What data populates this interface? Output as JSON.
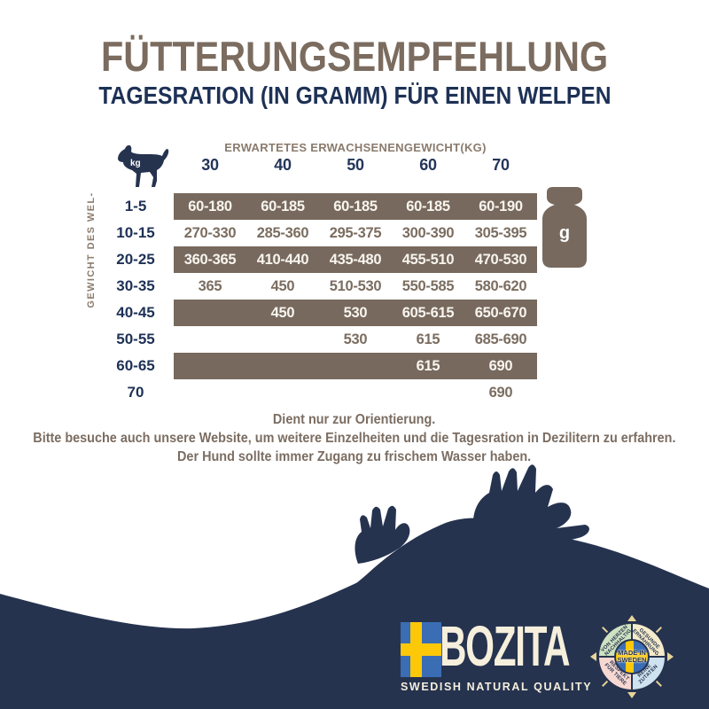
{
  "palette": {
    "navy": "#26334f",
    "navy_text": "#1e3156",
    "taupe_band": "#77695e",
    "taupe_text": "#7b6d60",
    "taupe_title": "#7b6c5f",
    "cream": "#f5efdc",
    "flag_blue": "#3a6db4",
    "flag_yellow": "#fdc808",
    "badge_green": "#cfe2c1",
    "badge_cream": "#f6ecca",
    "badge_pink": "#f7d8d1",
    "badge_blue": "#cfe2ef"
  },
  "header": {
    "title": "FÜTTERUNGSEMPFEHLUNG",
    "subtitle": "TAGESRATION (IN GRAMM) FÜR EINEN WELPEN"
  },
  "table": {
    "column_header": "ERWARTETES ERWACHSENENGEWICHT(KG)",
    "columns": [
      "30",
      "40",
      "50",
      "60",
      "70"
    ],
    "row_axis_label": "GEWICHT DES WEL-",
    "dog_icon_label": "kg",
    "weight_icon_label": "g",
    "rows": [
      {
        "label": "1-5",
        "banded": true,
        "values": [
          "60-180",
          "60-185",
          "60-185",
          "60-185",
          "60-190"
        ]
      },
      {
        "label": "10-15",
        "banded": false,
        "values": [
          "270-330",
          "285-360",
          "295-375",
          "300-390",
          "305-395"
        ]
      },
      {
        "label": "20-25",
        "banded": true,
        "values": [
          "360-365",
          "410-440",
          "435-480",
          "455-510",
          "470-530"
        ]
      },
      {
        "label": "30-35",
        "banded": false,
        "values": [
          "365",
          "450",
          "510-530",
          "550-585",
          "580-620"
        ]
      },
      {
        "label": "40-45",
        "banded": true,
        "values": [
          "",
          "450",
          "530",
          "605-615",
          "650-670"
        ]
      },
      {
        "label": "50-55",
        "banded": false,
        "values": [
          "",
          "",
          "530",
          "615",
          "685-690"
        ]
      },
      {
        "label": "60-65",
        "banded": true,
        "values": [
          "",
          "",
          "",
          "615",
          "690"
        ]
      },
      {
        "label": "70",
        "banded": false,
        "values": [
          "",
          "",
          "",
          "",
          "690"
        ]
      }
    ]
  },
  "notes": {
    "line1": "Dient nur zur Orientierung.",
    "line2": "Bitte besuche auch unsere Website, um weitere Einzelheiten und die Tagesration in Dezilitern zu erfahren.",
    "line3": "Der Hund sollte immer Zugang zu frischem Wasser haben."
  },
  "footer": {
    "logo": {
      "name": "BOZITA",
      "tagline": "SWEDISH NATURAL QUALITY"
    },
    "badge": {
      "center_line1": "MADE IN",
      "center_line2": "SWEDEN",
      "quadrants": [
        {
          "position": "top-left",
          "line1": "VON HERZEN",
          "line2": "NACHHALTIG"
        },
        {
          "position": "top-right",
          "line1": "GESUNDE",
          "line2": "ERNÄHRUNG"
        },
        {
          "position": "bottom-left",
          "line1": "RESPEKT",
          "line2": "FÜR TIERE"
        },
        {
          "position": "bottom-right",
          "line1": "REINE",
          "line2": "ZUTATEN"
        }
      ]
    }
  },
  "chart_data": {
    "type": "table",
    "title": "FÜTTERUNGSEMPFEHLUNG — TAGESRATION (IN GRAMM) FÜR EINEN WELPEN",
    "column_axis_label": "ERWARTETES ERWACHSENENGEWICHT(KG)",
    "row_axis_label": "GEWICHT DES WEL-",
    "unit": "g",
    "columns": [
      30,
      40,
      50,
      60,
      70
    ],
    "rows": [
      {
        "puppy_weight_kg": "1-5",
        "daily_ration_g": [
          "60-180",
          "60-185",
          "60-185",
          "60-185",
          "60-190"
        ]
      },
      {
        "puppy_weight_kg": "10-15",
        "daily_ration_g": [
          "270-330",
          "285-360",
          "295-375",
          "300-390",
          "305-395"
        ]
      },
      {
        "puppy_weight_kg": "20-25",
        "daily_ration_g": [
          "360-365",
          "410-440",
          "435-480",
          "455-510",
          "470-530"
        ]
      },
      {
        "puppy_weight_kg": "30-35",
        "daily_ration_g": [
          "365",
          "450",
          "510-530",
          "550-585",
          "580-620"
        ]
      },
      {
        "puppy_weight_kg": "40-45",
        "daily_ration_g": [
          "",
          "450",
          "530",
          "605-615",
          "650-670"
        ]
      },
      {
        "puppy_weight_kg": "50-55",
        "daily_ration_g": [
          "",
          "",
          "530",
          "615",
          "685-690"
        ]
      },
      {
        "puppy_weight_kg": "60-65",
        "daily_ration_g": [
          "",
          "",
          "",
          "615",
          "690"
        ]
      },
      {
        "puppy_weight_kg": "70",
        "daily_ration_g": [
          "",
          "",
          "",
          "",
          "690"
        ]
      }
    ]
  }
}
